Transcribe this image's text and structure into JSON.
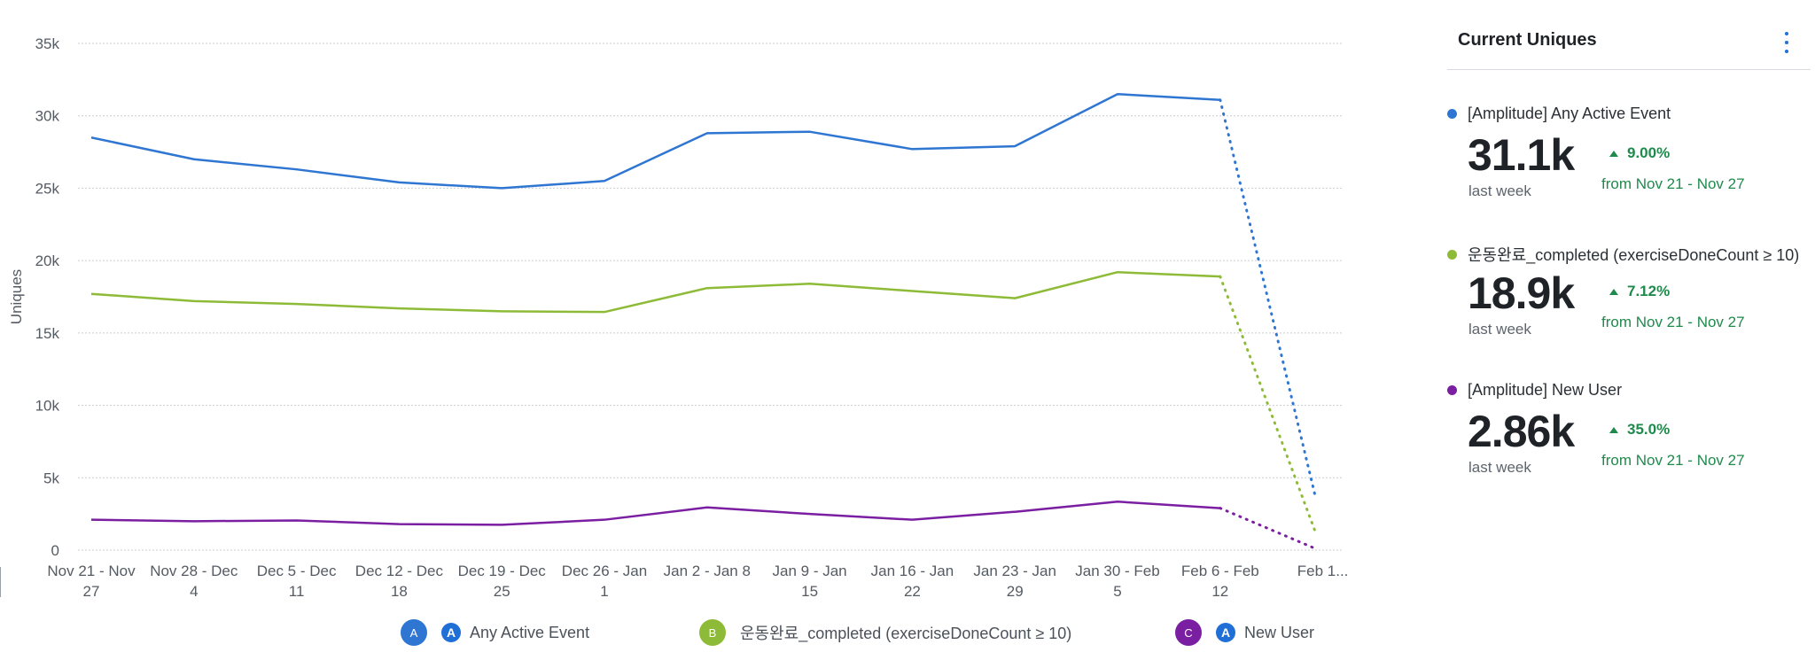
{
  "chart_data": {
    "type": "line",
    "ylabel": "Uniques",
    "xlabel": "",
    "ylim": [
      0,
      35000
    ],
    "yticks": [
      "0",
      "5k",
      "10k",
      "15k",
      "20k",
      "25k",
      "30k",
      "35k"
    ],
    "ytick_values": [
      0,
      5000,
      10000,
      15000,
      20000,
      25000,
      30000,
      35000
    ],
    "grid": true,
    "categories": [
      [
        "Nov 21 - Nov",
        "27"
      ],
      [
        "Nov 28 - Dec",
        "4"
      ],
      [
        "Dec 5 - Dec",
        "11"
      ],
      [
        "Dec 12 - Dec",
        "18"
      ],
      [
        "Dec 19 - Dec",
        "25"
      ],
      [
        "Dec 26 - Jan",
        "1"
      ],
      [
        "Jan 2 - Jan 8",
        ""
      ],
      [
        "Jan 9 - Jan",
        "15"
      ],
      [
        "Jan 16 - Jan",
        "22"
      ],
      [
        "Jan 23 - Jan",
        "29"
      ],
      [
        "Jan 30 - Feb",
        "5"
      ],
      [
        "Feb 6 - Feb",
        "12"
      ],
      [
        "Feb 1...",
        ""
      ]
    ],
    "incomplete_last_period": true,
    "series": [
      {
        "name": "Any Active Event",
        "letter": "A",
        "color": "#2f76d2",
        "values": [
          28500,
          27000,
          26300,
          25400,
          25000,
          25500,
          28800,
          28900,
          27700,
          27900,
          31500,
          31100,
          3600
        ]
      },
      {
        "name": "운동완료_completed (exerciseDoneCount ≥ 10)",
        "letter": "B",
        "color": "#8ebb37",
        "values": [
          17700,
          17200,
          17000,
          16700,
          16500,
          16450,
          18100,
          18400,
          17900,
          17400,
          19200,
          18900,
          1200
        ]
      },
      {
        "name": "New User",
        "letter": "C",
        "color": "#7b1fa2",
        "values": [
          2100,
          2000,
          2050,
          1800,
          1750,
          2100,
          2950,
          2500,
          2100,
          2650,
          3350,
          2900,
          100
        ]
      }
    ]
  },
  "panel": {
    "title": "Current Uniques",
    "metrics": [
      {
        "name": "[Amplitude] Any Active Event",
        "color": "#2f76d2",
        "value": "31.1k",
        "sub": "last week",
        "change": "9.00%",
        "from": "from Nov 21 - Nov 27"
      },
      {
        "name": "운동완료_completed (exerciseDoneCount ≥ 10)",
        "color": "#8ebb37",
        "value": "18.9k",
        "sub": "last week",
        "change": "7.12%",
        "from": "from Nov 21 - Nov 27"
      },
      {
        "name": "[Amplitude] New User",
        "color": "#7b1fa2",
        "value": "2.86k",
        "sub": "last week",
        "change": "35.0%",
        "from": "from Nov 21 - Nov 27"
      }
    ]
  }
}
